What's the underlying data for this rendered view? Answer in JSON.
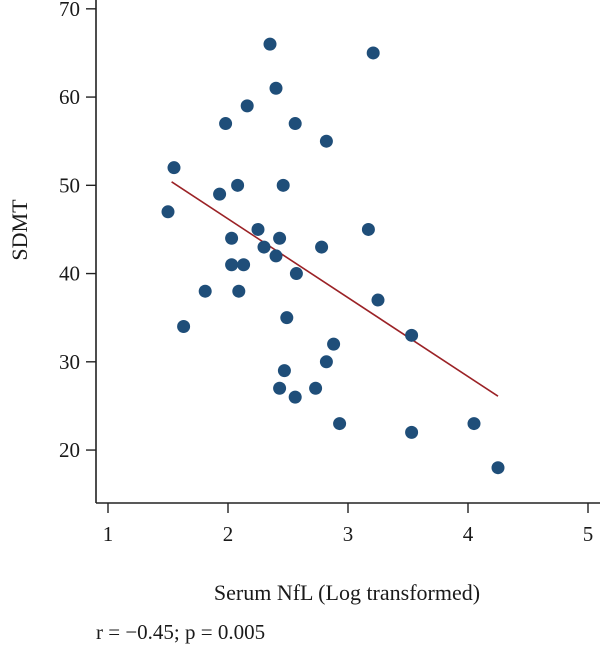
{
  "chart_data": {
    "type": "scatter",
    "xlabel": "Serum NfL (Log transformed)",
    "ylabel": "SDMT",
    "xlim": [
      0.9,
      5.1
    ],
    "ylim": [
      14,
      71
    ],
    "xticks": [
      1,
      2,
      3,
      4,
      5
    ],
    "yticks": [
      20,
      30,
      40,
      50,
      60,
      70
    ],
    "grid": false,
    "point_color": "#1f4e79",
    "line_color": "#9b2226",
    "annotation": "r = −0.45; p = 0.005",
    "points": [
      {
        "x": 1.5,
        "y": 47
      },
      {
        "x": 1.55,
        "y": 52
      },
      {
        "x": 1.63,
        "y": 34
      },
      {
        "x": 1.81,
        "y": 38
      },
      {
        "x": 1.93,
        "y": 49
      },
      {
        "x": 1.98,
        "y": 57
      },
      {
        "x": 2.03,
        "y": 44
      },
      {
        "x": 2.03,
        "y": 41
      },
      {
        "x": 2.08,
        "y": 50
      },
      {
        "x": 2.09,
        "y": 38
      },
      {
        "x": 2.13,
        "y": 41
      },
      {
        "x": 2.16,
        "y": 59
      },
      {
        "x": 2.25,
        "y": 45
      },
      {
        "x": 2.3,
        "y": 43
      },
      {
        "x": 2.35,
        "y": 66
      },
      {
        "x": 2.4,
        "y": 61
      },
      {
        "x": 2.4,
        "y": 42
      },
      {
        "x": 2.43,
        "y": 44
      },
      {
        "x": 2.43,
        "y": 27
      },
      {
        "x": 2.46,
        "y": 50
      },
      {
        "x": 2.47,
        "y": 29
      },
      {
        "x": 2.49,
        "y": 35
      },
      {
        "x": 2.56,
        "y": 57
      },
      {
        "x": 2.56,
        "y": 26
      },
      {
        "x": 2.57,
        "y": 40
      },
      {
        "x": 2.73,
        "y": 27
      },
      {
        "x": 2.78,
        "y": 43
      },
      {
        "x": 2.82,
        "y": 55
      },
      {
        "x": 2.82,
        "y": 30
      },
      {
        "x": 2.88,
        "y": 32
      },
      {
        "x": 2.93,
        "y": 23
      },
      {
        "x": 3.17,
        "y": 45
      },
      {
        "x": 3.21,
        "y": 65
      },
      {
        "x": 3.25,
        "y": 37
      },
      {
        "x": 3.53,
        "y": 33
      },
      {
        "x": 3.53,
        "y": 22
      },
      {
        "x": 4.05,
        "y": 23
      },
      {
        "x": 4.25,
        "y": 18
      }
    ],
    "trendline": {
      "x": [
        1.53,
        4.25
      ],
      "y": [
        50.4,
        26.1
      ]
    }
  }
}
